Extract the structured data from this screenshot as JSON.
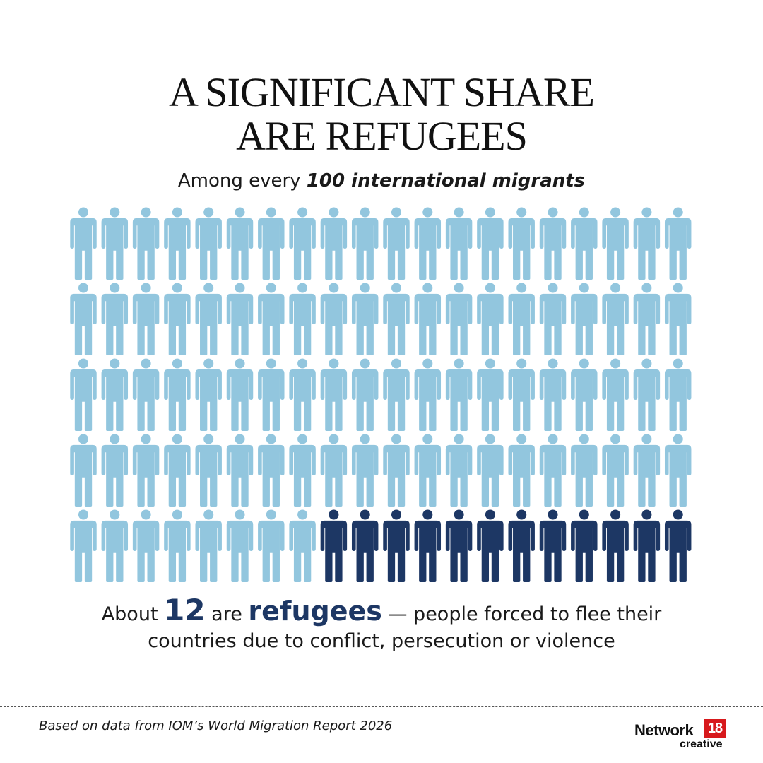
{
  "header": {
    "title_line1": "A SIGNIFICANT SHARE",
    "title_line2": "ARE REFUGEES",
    "subtitle_prefix": "Among every ",
    "subtitle_emphasis": "100 international migrants"
  },
  "chart_data": {
    "type": "pictogram",
    "total": 100,
    "highlighted": 12,
    "grid": {
      "rows": 5,
      "columns": 20
    },
    "highlight_position": "end of last row",
    "colors": {
      "base": "#92c6de",
      "highlight": "#1d3764"
    }
  },
  "caption": {
    "pre": "About ",
    "number": "12",
    "mid": " are ",
    "keyword": "refugees",
    "post_line1": " — people forced to flee their",
    "line2": "countries due to conflict, persecution or violence"
  },
  "footer": {
    "source": "Based on data from IOM’s World Migration Report 2026",
    "logo_word": "Network",
    "logo_number": "18",
    "logo_sub": "creative"
  }
}
